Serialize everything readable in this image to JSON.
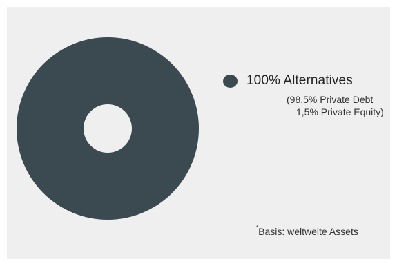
{
  "chart_data": {
    "type": "pie",
    "categories": [
      "100% Alternatives"
    ],
    "values": [
      100
    ],
    "breakdown": [
      "(98,5% Private Debt",
      "1,5% Private Equity)"
    ],
    "footnote_mark": "*",
    "footnote_text": "Basis: weltweite Assets"
  },
  "colors": {
    "slice": "#3b4a50",
    "panel": "#efefef"
  }
}
